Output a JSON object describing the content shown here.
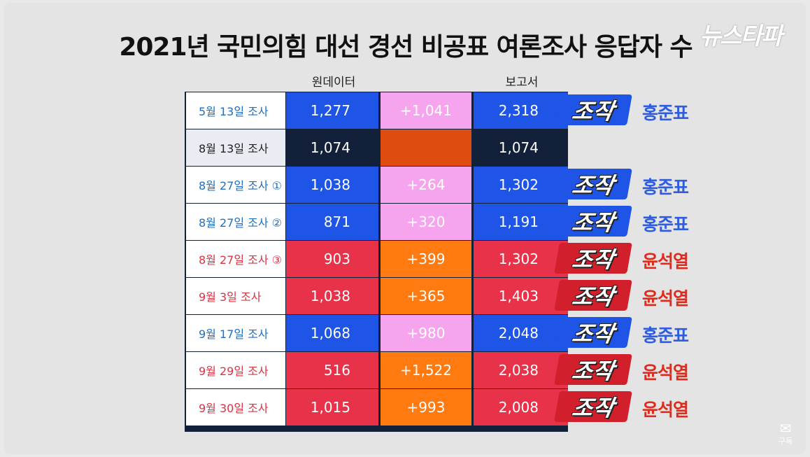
{
  "title": "2021년 국민의힘 대선 경선 비공표 여론조사 응답자 수",
  "logo": "뉴스타파",
  "subscribe": {
    "label": "구독"
  },
  "colors": {
    "blue": "#1f55e6",
    "red": "#e8324a",
    "dark": "#13203a",
    "pink": "#f6a4ee",
    "orange_blue": "#ff7a10",
    "orange_dark": "#e04b10",
    "label_blue": "#1f6fc1",
    "label_red": "#d93344",
    "label_dark": "#222222",
    "cand_blue": "#2f5de0",
    "cand_red": "#e02a1c"
  },
  "chart_data": {
    "type": "table",
    "title": "2021년 국민의힘 대선 경선 비공표 여론조사 응답자 수",
    "columns": [
      "",
      "원데이터",
      "",
      "보고서"
    ],
    "rows": [
      {
        "label": "5월 13일 조사",
        "raw": "1,277",
        "diff": "+1,041",
        "report": "2,318",
        "stamp": "조작",
        "candidate": "홍준표",
        "theme": "blue"
      },
      {
        "label": "8월 13일 조사",
        "raw": "1,074",
        "diff": "",
        "report": "1,074",
        "stamp": "",
        "candidate": "",
        "theme": "dark"
      },
      {
        "label": "8월 27일 조사 ①",
        "raw": "1,038",
        "diff": "+264",
        "report": "1,302",
        "stamp": "조작",
        "candidate": "홍준표",
        "theme": "blue"
      },
      {
        "label": "8월 27일 조사 ②",
        "raw": "871",
        "diff": "+320",
        "report": "1,191",
        "stamp": "조작",
        "candidate": "홍준표",
        "theme": "blue"
      },
      {
        "label": "8월 27일 조사 ③",
        "raw": "903",
        "diff": "+399",
        "report": "1,302",
        "stamp": "조작",
        "candidate": "윤석열",
        "theme": "red"
      },
      {
        "label": "9월   3일 조사",
        "raw": "1,038",
        "diff": "+365",
        "report": "1,403",
        "stamp": "조작",
        "candidate": "윤석열",
        "theme": "red"
      },
      {
        "label": "9월 17일 조사",
        "raw": "1,068",
        "diff": "+980",
        "report": "2,048",
        "stamp": "조작",
        "candidate": "홍준표",
        "theme": "blue"
      },
      {
        "label": "9월 29일 조사",
        "raw": "516",
        "diff": "+1,522",
        "report": "2,038",
        "stamp": "조작",
        "candidate": "윤석열",
        "theme": "red"
      },
      {
        "label": "9월 30일 조사",
        "raw": "1,015",
        "diff": "+993",
        "report": "2,008",
        "stamp": "조작",
        "candidate": "윤석열",
        "theme": "red"
      }
    ]
  }
}
